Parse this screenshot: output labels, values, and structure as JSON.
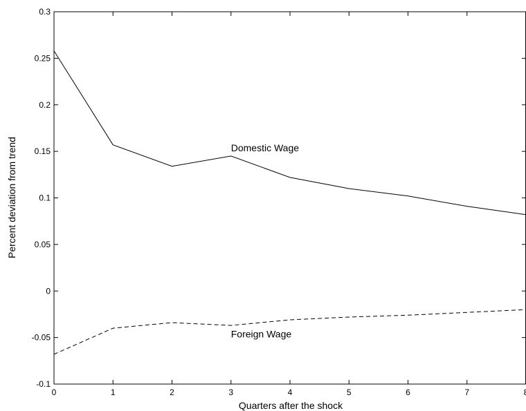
{
  "chart_data": {
    "type": "line",
    "xlabel": "Quarters after the shock",
    "ylabel": "Percent deviation from trend",
    "x": [
      0,
      1,
      2,
      3,
      4,
      5,
      6,
      7,
      8
    ],
    "series": [
      {
        "name": "Domestic Wage",
        "color": "#000000",
        "dash": "solid",
        "values": [
          0.258,
          0.157,
          0.134,
          0.145,
          0.122,
          0.11,
          0.102,
          0.091,
          0.082
        ]
      },
      {
        "name": "Foreign Wage",
        "color": "#000000",
        "dash": "dashed",
        "values": [
          -0.068,
          -0.04,
          -0.034,
          -0.037,
          -0.031,
          -0.028,
          -0.026,
          -0.023,
          -0.02
        ]
      }
    ],
    "xlim": [
      0,
      8
    ],
    "ylim": [
      -0.1,
      0.3
    ],
    "xticks": [
      0,
      1,
      2,
      3,
      4,
      5,
      6,
      7,
      8
    ],
    "yticks": [
      -0.1,
      -0.05,
      0,
      0.05,
      0.1,
      0.15,
      0.2,
      0.25,
      0.3
    ],
    "grid": false
  }
}
